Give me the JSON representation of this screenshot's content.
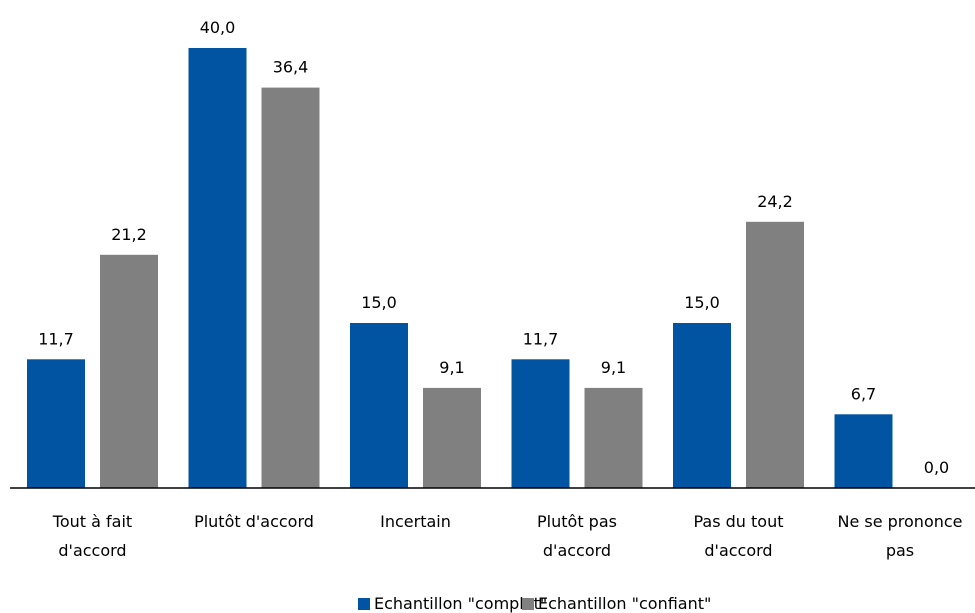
{
  "chart_data": {
    "type": "bar",
    "categories": [
      [
        "Tout à fait",
        "d'accord"
      ],
      [
        "Plutôt d'accord"
      ],
      [
        "Incertain"
      ],
      [
        "Plutôt pas",
        "d'accord"
      ],
      [
        "Pas du tout",
        "d'accord"
      ],
      [
        "Ne se prononce",
        "pas"
      ]
    ],
    "series": [
      {
        "name": "Echantillon \"complet\"",
        "color": "#0054a2",
        "values": [
          11.7,
          40.0,
          15.0,
          11.7,
          15.0,
          6.7
        ],
        "labels": [
          "11,7",
          "40,0",
          "15,0",
          "11,7",
          "15,0",
          "6,7"
        ]
      },
      {
        "name": "Echantillon \"confiant\"",
        "color": "#808080",
        "values": [
          21.2,
          36.4,
          9.1,
          9.1,
          24.2,
          0.0
        ],
        "labels": [
          "21,2",
          "36,4",
          "9,1",
          "9,1",
          "24,2",
          "0,0"
        ]
      }
    ],
    "ylim": [
      0,
      40
    ],
    "grid": false,
    "legend": "bottom"
  }
}
